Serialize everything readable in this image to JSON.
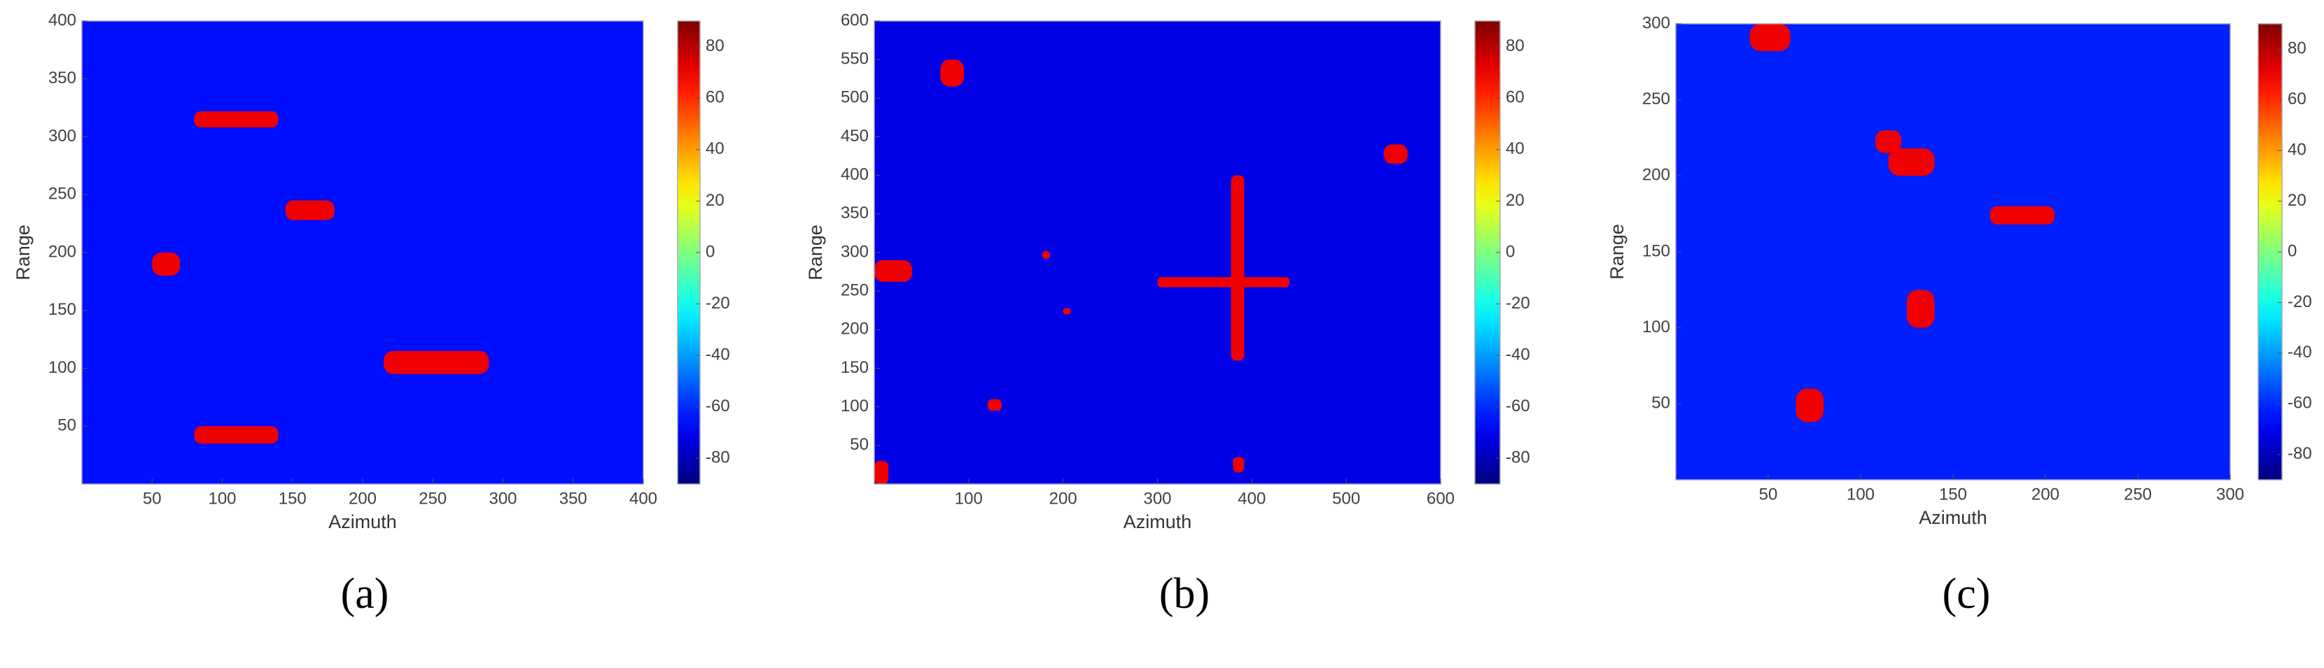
{
  "chart_data": [
    {
      "type": "heatmap",
      "xlabel": "Azimuth",
      "ylabel": "Range",
      "panel_label": "(a)",
      "xlim": [
        0,
        400
      ],
      "ylim": [
        0,
        400
      ],
      "xticks": [
        50,
        100,
        150,
        200,
        250,
        300,
        350,
        400
      ],
      "yticks": [
        50,
        100,
        150,
        200,
        250,
        300,
        350,
        400
      ],
      "clim": [
        -90,
        90
      ],
      "cticks": [
        -80,
        -60,
        -40,
        -20,
        0,
        20,
        40,
        60,
        80
      ],
      "background": -65,
      "targets": [
        {
          "x": [
            80,
            140
          ],
          "y": [
            308,
            322
          ],
          "value": 70
        },
        {
          "x": [
            145,
            180
          ],
          "y": [
            228,
            245
          ],
          "value": 70
        },
        {
          "x": [
            50,
            70
          ],
          "y": [
            180,
            200
          ],
          "value": 70
        },
        {
          "x": [
            215,
            290
          ],
          "y": [
            95,
            115
          ],
          "value": 70
        },
        {
          "x": [
            80,
            140
          ],
          "y": [
            35,
            50
          ],
          "value": 70
        }
      ]
    },
    {
      "type": "heatmap",
      "xlabel": "Azimuth",
      "ylabel": "Range",
      "panel_label": "(b)",
      "xlim": [
        0,
        600
      ],
      "ylim": [
        0,
        600
      ],
      "xticks": [
        100,
        200,
        300,
        400,
        500,
        600
      ],
      "yticks": [
        50,
        100,
        150,
        200,
        250,
        300,
        350,
        400,
        450,
        500,
        550,
        600
      ],
      "clim": [
        -90,
        90
      ],
      "cticks": [
        -80,
        -60,
        -40,
        -20,
        0,
        20,
        40,
        60,
        80
      ],
      "background": -72,
      "targets": [
        {
          "x": [
            70,
            95
          ],
          "y": [
            515,
            550
          ],
          "value": 70
        },
        {
          "x": [
            0,
            40
          ],
          "y": [
            262,
            290
          ],
          "value": 70
        },
        {
          "x": [
            300,
            440
          ],
          "y": [
            255,
            268
          ],
          "value": 70
        },
        {
          "x": [
            378,
            392
          ],
          "y": [
            160,
            400
          ],
          "value": 70
        },
        {
          "x": [
            120,
            135
          ],
          "y": [
            95,
            110
          ],
          "value": 70
        },
        {
          "x": [
            540,
            565
          ],
          "y": [
            415,
            440
          ],
          "value": 70
        },
        {
          "x": [
            0,
            15
          ],
          "y": [
            0,
            30
          ],
          "value": 70
        },
        {
          "x": [
            380,
            392
          ],
          "y": [
            15,
            35
          ],
          "value": 70
        },
        {
          "x": [
            178,
            186
          ],
          "y": [
            292,
            302
          ],
          "value": 70
        },
        {
          "x": [
            200,
            208
          ],
          "y": [
            220,
            228
          ],
          "value": 70
        }
      ]
    },
    {
      "type": "heatmap",
      "xlabel": "Azimuth",
      "ylabel": "Range",
      "panel_label": "(c)",
      "xlim": [
        0,
        300
      ],
      "ylim": [
        0,
        300
      ],
      "xticks": [
        50,
        100,
        150,
        200,
        250,
        300
      ],
      "yticks": [
        50,
        100,
        150,
        200,
        250,
        300
      ],
      "clim": [
        -90,
        90
      ],
      "cticks": [
        -80,
        -60,
        -40,
        -20,
        0,
        20,
        40,
        60,
        80
      ],
      "background": -62,
      "targets": [
        {
          "x": [
            40,
            62
          ],
          "y": [
            282,
            300
          ],
          "value": 70
        },
        {
          "x": [
            108,
            122
          ],
          "y": [
            215,
            230
          ],
          "value": 70
        },
        {
          "x": [
            115,
            140
          ],
          "y": [
            200,
            218
          ],
          "value": 70
        },
        {
          "x": [
            170,
            205
          ],
          "y": [
            168,
            180
          ],
          "value": 70
        },
        {
          "x": [
            125,
            140
          ],
          "y": [
            100,
            125
          ],
          "value": 70
        },
        {
          "x": [
            65,
            80
          ],
          "y": [
            38,
            60
          ],
          "value": 70
        }
      ]
    }
  ]
}
